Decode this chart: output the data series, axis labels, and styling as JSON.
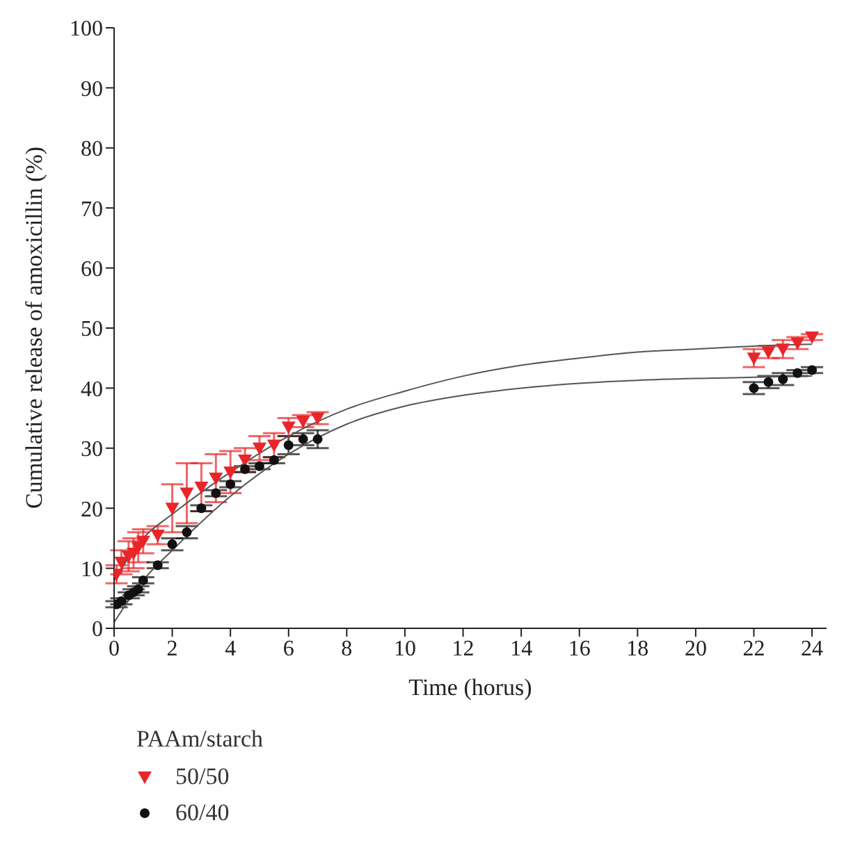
{
  "chart_data": {
    "type": "scatter",
    "xlabel": "Time (horus)",
    "ylabel": "Cumulative release of amoxicillin (%)",
    "legend_title": "PAAm/starch",
    "legend": "bottom left",
    "xlim": [
      0,
      24.5
    ],
    "xticks": [
      0,
      2,
      4,
      6,
      8,
      10,
      12,
      14,
      16,
      18,
      20,
      22,
      24
    ],
    "ylim": [
      0,
      100
    ],
    "yticks": [
      0,
      10,
      20,
      30,
      40,
      50,
      60,
      70,
      80,
      90,
      100
    ],
    "series": [
      {
        "name": "50/50",
        "color": "#e8262a",
        "marker": "triangle",
        "x": [
          0.083,
          0.25,
          0.5,
          0.67,
          0.83,
          1,
          1.5,
          2,
          2.5,
          3,
          3.5,
          4,
          4.5,
          5,
          5.5,
          6,
          6.5,
          7,
          22,
          22.5,
          23,
          23.5,
          24
        ],
        "values": [
          9,
          11,
          12,
          12.5,
          13.5,
          14.5,
          15.5,
          20,
          22.5,
          23.5,
          25,
          26,
          28,
          30,
          30.5,
          33.5,
          34.5,
          35,
          45,
          46,
          46.5,
          47.5,
          48.5
        ],
        "errors": [
          1.5,
          2,
          2.5,
          2.5,
          2.5,
          2,
          1.5,
          4,
          5,
          4,
          4,
          3.5,
          2,
          2,
          2,
          1.5,
          1,
          1,
          1.5,
          1,
          1.5,
          1,
          0.5
        ]
      },
      {
        "name": "60/40",
        "color": "#111111",
        "marker": "circle",
        "x": [
          0.083,
          0.25,
          0.5,
          0.67,
          0.83,
          1,
          1.5,
          2,
          2.5,
          3,
          3.5,
          4,
          4.5,
          5,
          5.5,
          6,
          6.5,
          7,
          22,
          22.5,
          23,
          23.5,
          24
        ],
        "values": [
          4,
          4.5,
          5.5,
          6,
          6.5,
          8,
          10.5,
          14,
          16,
          20,
          22.5,
          24,
          26.5,
          27,
          28,
          30.5,
          31.5,
          31.5,
          40,
          41,
          41.5,
          42.5,
          43
        ],
        "errors": [
          0.5,
          0.5,
          0.5,
          0.5,
          0.5,
          0.5,
          0.5,
          1,
          1,
          0.5,
          0.5,
          0.5,
          0.5,
          0.5,
          0.5,
          1.5,
          1,
          1.5,
          1,
          1,
          1,
          0.5,
          0.5
        ]
      },
      {
        "type": "line",
        "color": "#555555",
        "x": [
          0,
          1,
          2,
          4,
          6,
          8,
          10,
          12,
          14,
          16,
          18,
          20,
          22,
          24
        ],
        "values": [
          8,
          15,
          19,
          26,
          32,
          36.5,
          39.5,
          42,
          43.8,
          45,
          46,
          46.5,
          47,
          47.3
        ]
      },
      {
        "type": "line",
        "color": "#555555",
        "x": [
          0,
          1,
          2,
          4,
          6,
          8,
          10,
          12,
          14,
          16,
          18,
          20,
          22,
          24
        ],
        "values": [
          1,
          8,
          13,
          22,
          29,
          34,
          37,
          38.8,
          40,
          40.8,
          41.3,
          41.6,
          41.8,
          42
        ]
      }
    ]
  }
}
